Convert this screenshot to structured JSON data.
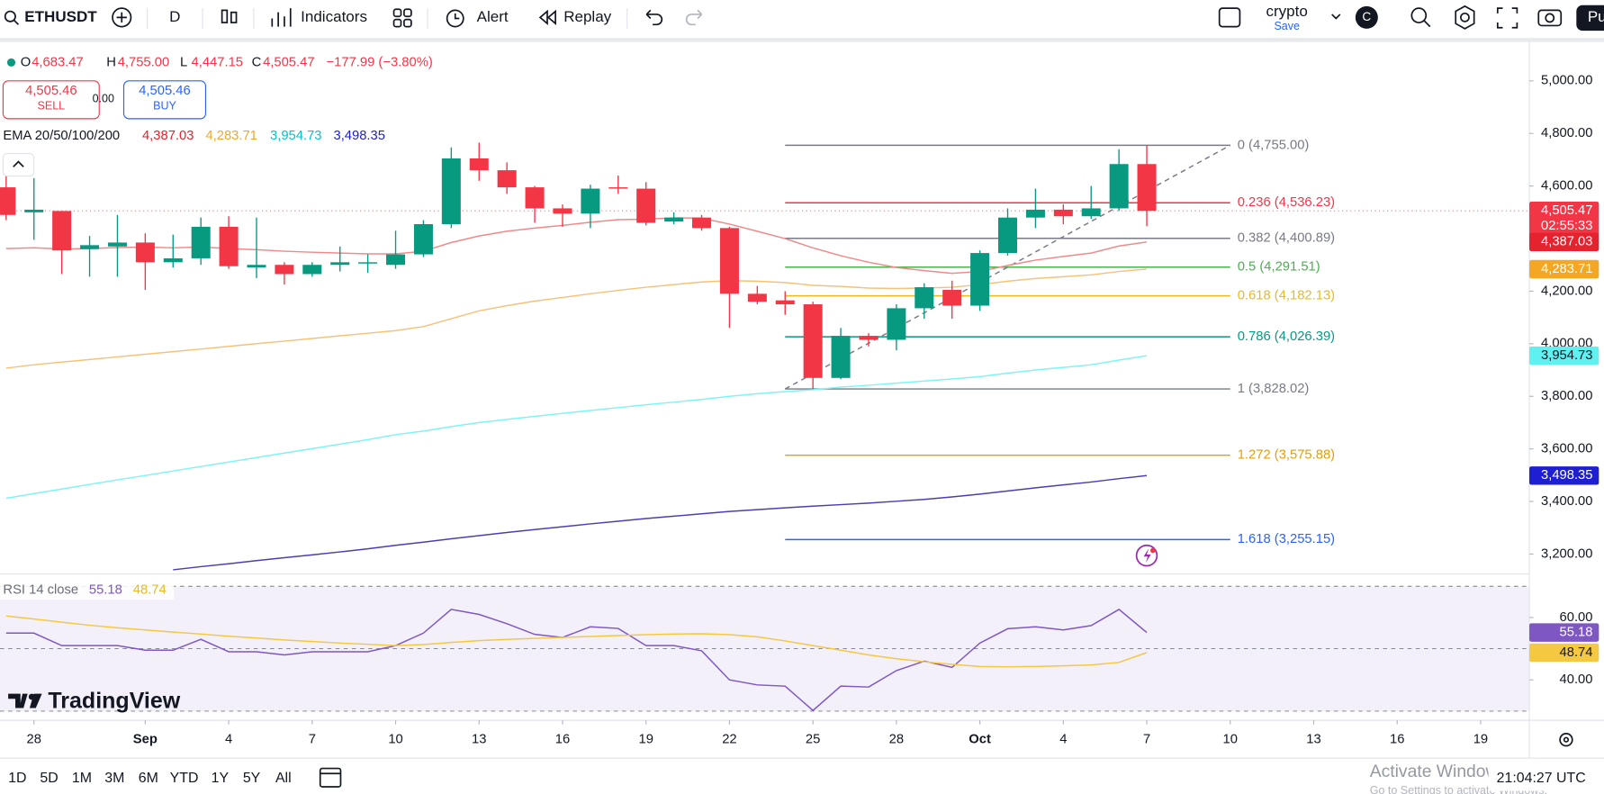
{
  "ui": {
    "toolbar": {
      "symbol": "ETHUSDT",
      "interval": "D",
      "indicators": "Indicators",
      "alert": "Alert",
      "replay": "Replay",
      "layout_name": "crypto",
      "save": "Save",
      "avatar": "C",
      "publish": "Pu"
    },
    "legend": {
      "ohlc": [
        {
          "key": "O",
          "value": "4,683.47"
        },
        {
          "key": "H",
          "value": "4,755.00"
        },
        {
          "key": "L",
          "value": "4,447.15"
        },
        {
          "key": "C",
          "value": "4,505.47"
        }
      ],
      "change": "−177.99 (−3.80%)"
    },
    "trade": {
      "sell_price": "4,505.46",
      "sell": "SELL",
      "spread": "0.00",
      "buy_price": "4,505.46",
      "buy": "BUY"
    },
    "ranges": [
      "1D",
      "5D",
      "1M",
      "3M",
      "6M",
      "YTD",
      "1Y",
      "5Y",
      "All"
    ],
    "clock": "21:04:27 UTC",
    "watermark": "TradingView",
    "windows": {
      "title": "Activate Windows",
      "sub": "Go to Settings to activate Windows."
    }
  },
  "chart_data": [
    {
      "type": "candlestick",
      "indicator_label": "EMA 20/50/100/200",
      "x": [
        "08-27",
        "08-28",
        "08-29",
        "08-30",
        "08-31",
        "09-01",
        "09-02",
        "09-03",
        "09-04",
        "09-05",
        "09-06",
        "09-07",
        "09-08",
        "09-09",
        "09-10",
        "09-11",
        "09-12",
        "09-13",
        "09-14",
        "09-15",
        "09-16",
        "09-17",
        "09-18",
        "09-19",
        "09-20",
        "09-21",
        "09-22",
        "09-23",
        "09-24",
        "09-25",
        "09-26",
        "09-27",
        "09-28",
        "09-29",
        "09-30",
        "10-01",
        "10-02",
        "10-03",
        "10-04",
        "10-05",
        "10-06",
        "10-07"
      ],
      "open": [
        4595,
        4500,
        4505,
        4360,
        4370,
        4385,
        4310,
        4325,
        4445,
        4290,
        4300,
        4265,
        4300,
        4305,
        4300,
        4340,
        4455,
        4705,
        4660,
        4595,
        4515,
        4495,
        4595,
        4590,
        4465,
        4480,
        4440,
        4190,
        4165,
        4150,
        3870,
        4030,
        4015,
        4135,
        4205,
        4145,
        4345,
        4480,
        4510,
        4485,
        4515,
        4683.47
      ],
      "high": [
        4638,
        4630,
        4505,
        4410,
        4490,
        4420,
        4415,
        4480,
        4485,
        4480,
        4310,
        4310,
        4370,
        4340,
        4430,
        4470,
        4747,
        4765,
        4690,
        4600,
        4530,
        4605,
        4640,
        4615,
        4500,
        4490,
        4445,
        4220,
        4200,
        4160,
        4060,
        4040,
        4150,
        4230,
        4240,
        4355,
        4515,
        4590,
        4530,
        4600,
        4740,
        4755
      ],
      "low": [
        4470,
        4395,
        4265,
        4255,
        4255,
        4205,
        4290,
        4300,
        4285,
        4250,
        4225,
        4255,
        4275,
        4270,
        4285,
        4330,
        4440,
        4620,
        4570,
        4460,
        4445,
        4440,
        4570,
        4450,
        4455,
        4430,
        4060,
        4150,
        4110,
        3828.02,
        3865,
        3990,
        3975,
        4095,
        4095,
        4125,
        4335,
        4440,
        4455,
        4475,
        4505,
        4447.15
      ],
      "close": [
        4490,
        4510,
        4355,
        4375,
        4385,
        4310,
        4325,
        4445,
        4295,
        4300,
        4265,
        4300,
        4310,
        4310,
        4340,
        4455,
        4705,
        4660,
        4595,
        4515,
        4495,
        4590,
        4590,
        4460,
        4480,
        4440,
        4190,
        4160,
        4150,
        3870,
        4030,
        4015,
        4135,
        4215,
        4145,
        4345,
        4480,
        4510,
        4485,
        4515,
        4683.47,
        4505.47
      ],
      "up_color": "#089981",
      "down_color": "#f23645",
      "last_label": "4,505.47",
      "countdown": "02:55:33",
      "xlim": [
        "08-27",
        "10-20"
      ],
      "xticks": [
        {
          "value": "08-28",
          "label": "28"
        },
        {
          "value": "09-01",
          "label": "Sep"
        },
        {
          "value": "09-04",
          "label": "4"
        },
        {
          "value": "09-07",
          "label": "7"
        },
        {
          "value": "09-10",
          "label": "10"
        },
        {
          "value": "09-13",
          "label": "13"
        },
        {
          "value": "09-16",
          "label": "16"
        },
        {
          "value": "09-19",
          "label": "19"
        },
        {
          "value": "09-22",
          "label": "22"
        },
        {
          "value": "09-25",
          "label": "25"
        },
        {
          "value": "09-28",
          "label": "28"
        },
        {
          "value": "10-01",
          "label": "Oct"
        },
        {
          "value": "10-04",
          "label": "4"
        },
        {
          "value": "10-07",
          "label": "7"
        },
        {
          "value": "10-10",
          "label": "10"
        },
        {
          "value": "10-13",
          "label": "13"
        },
        {
          "value": "10-16",
          "label": "16"
        },
        {
          "value": "10-19",
          "label": "19"
        }
      ],
      "ylim": [
        3128,
        5144
      ],
      "yticks": [
        {
          "value": 3200,
          "label": "3,200.00"
        },
        {
          "value": 3400,
          "label": "3,400.00"
        },
        {
          "value": 3600,
          "label": "3,600.00"
        },
        {
          "value": 3800,
          "label": "3,800.00"
        },
        {
          "value": 4000,
          "label": "4,000.00"
        },
        {
          "value": 4200,
          "label": "4,200.00"
        },
        {
          "value": 4400,
          "label": "4,400.00"
        },
        {
          "value": 4600,
          "label": "4,600.00"
        },
        {
          "value": 4800,
          "label": "4,800.00"
        },
        {
          "value": 5000,
          "label": "5,000.00"
        }
      ],
      "series": [
        {
          "color": "#e5222d",
          "line_color": "#ef8a8a",
          "last_label": "4,387.03",
          "values": [
            4362,
            4365,
            4360,
            4362,
            4366,
            4368,
            4365,
            4368,
            4362,
            4358,
            4352,
            4348,
            4345,
            4342,
            4342,
            4352,
            4385,
            4410,
            4428,
            4440,
            4450,
            4462,
            4472,
            4474,
            4479,
            4478,
            4455,
            4428,
            4400,
            4365,
            4335,
            4310,
            4290,
            4278,
            4268,
            4275,
            4298,
            4318,
            4332,
            4345,
            4372,
            4387.03
          ]
        },
        {
          "color": "#f5a623",
          "line_color": "#f5c27a",
          "last_label": "4,283.71",
          "values": [
            3907,
            3920,
            3930,
            3940,
            3950,
            3960,
            3970,
            3980,
            3990,
            4000,
            4010,
            4020,
            4030,
            4040,
            4050,
            4065,
            4095,
            4125,
            4145,
            4162,
            4176,
            4190,
            4203,
            4215,
            4225,
            4235,
            4240,
            4238,
            4233,
            4222,
            4218,
            4212,
            4210,
            4212,
            4215,
            4225,
            4238,
            4248,
            4255,
            4262,
            4275,
            4283.71
          ]
        },
        {
          "color": "#5ff0f0",
          "line_color": "#7ef4f4",
          "last_label": "3,954.73",
          "values": [
            3412,
            3430,
            3447,
            3465,
            3482,
            3499,
            3516,
            3533,
            3550,
            3567,
            3584,
            3601,
            3618,
            3635,
            3654,
            3668,
            3685,
            3700,
            3712,
            3724,
            3735,
            3746,
            3757,
            3768,
            3778,
            3788,
            3800,
            3810,
            3818,
            3825,
            3835,
            3842,
            3850,
            3858,
            3866,
            3875,
            3888,
            3900,
            3910,
            3920,
            3938,
            3954.73
          ]
        },
        {
          "color": "#1e1ed2",
          "line_color": "#4b3fb0",
          "last_label": "3,498.35",
          "values": [
            null,
            null,
            null,
            null,
            null,
            null,
            3140,
            3152,
            3163,
            3175,
            3186,
            3197,
            3208,
            3220,
            3233,
            3245,
            3258,
            3270,
            3282,
            3293,
            3304,
            3315,
            3325,
            3335,
            3344,
            3353,
            3362,
            3369,
            3376,
            3382,
            3388,
            3394,
            3401,
            3408,
            3417,
            3428,
            3440,
            3452,
            3463,
            3474,
            3487,
            3498.35
          ]
        }
      ],
      "fib": {
        "from": "09-24",
        "to": "10-10",
        "levels": [
          {
            "value": 4755,
            "label": "0 (4,755.00)",
            "color": "#787b86"
          },
          {
            "value": 4536.23,
            "label": "0.236 (4,536.23)",
            "color": "#f23645"
          },
          {
            "value": 4400.89,
            "label": "0.382 (4,400.89)",
            "color": "#787b86"
          },
          {
            "value": 4291.51,
            "label": "0.5 (4,291.51)",
            "color": "#4caf50"
          },
          {
            "value": 4182.13,
            "label": "0.618 (4,182.13)",
            "color": "#e8b923"
          },
          {
            "value": 4026.39,
            "label": "0.786 (4,026.39)",
            "color": "#089981"
          },
          {
            "value": 3828.02,
            "label": "1 (3,828.02)",
            "color": "#787b86"
          },
          {
            "value": 3575.88,
            "label": "1.272 (3,575.88)",
            "color": "#e69d0a"
          },
          {
            "value": 3255.15,
            "label": "1.618 (3,255.15)",
            "color": "#2962ff"
          }
        ]
      }
    },
    {
      "type": "line",
      "title": "RSI 14 close",
      "x": [
        "08-27",
        "08-28",
        "08-29",
        "08-30",
        "08-31",
        "09-01",
        "09-02",
        "09-03",
        "09-04",
        "09-05",
        "09-06",
        "09-07",
        "09-08",
        "09-09",
        "09-10",
        "09-11",
        "09-12",
        "09-13",
        "09-14",
        "09-15",
        "09-16",
        "09-17",
        "09-18",
        "09-19",
        "09-20",
        "09-21",
        "09-22",
        "09-23",
        "09-24",
        "09-25",
        "09-26",
        "09-27",
        "09-28",
        "09-29",
        "09-30",
        "10-01",
        "10-02",
        "10-03",
        "10-04",
        "10-05",
        "10-06",
        "10-07"
      ],
      "ylim": [
        30,
        70
      ],
      "yticks": [
        {
          "value": 40,
          "label": "40.00"
        },
        {
          "value": 60,
          "label": "60.00"
        }
      ],
      "levels": [
        70,
        50,
        30
      ],
      "band_color": "#7e57c2",
      "series": [
        {
          "color": "#7e57c2",
          "last_label": "55.18",
          "values": [
            55,
            55,
            51,
            51,
            51,
            49.5,
            49.5,
            53,
            49,
            49,
            48,
            49,
            49,
            49,
            51,
            55,
            62.6,
            61,
            58,
            54.6,
            53.6,
            57,
            56.5,
            51,
            51,
            49.3,
            40,
            38.4,
            38,
            30.2,
            38,
            37.7,
            43,
            46,
            44,
            51.8,
            56.4,
            57,
            56,
            57.4,
            62.6,
            55.18
          ]
        },
        {
          "color": "#f5c842",
          "last_label": "48.74",
          "values": [
            60.5,
            59.5,
            58.5,
            57.5,
            56.7,
            56,
            55.3,
            54.7,
            54,
            53.4,
            52.8,
            52.3,
            51.8,
            51.4,
            51,
            51.3,
            52,
            52.6,
            53,
            53.3,
            53.6,
            53.9,
            54.2,
            54.5,
            54.7,
            54.8,
            54.5,
            53.8,
            52.5,
            51,
            49.5,
            48,
            46.8,
            45.8,
            45,
            44.3,
            44.2,
            44.3,
            44.5,
            44.8,
            45.6,
            48.74
          ]
        }
      ]
    }
  ]
}
